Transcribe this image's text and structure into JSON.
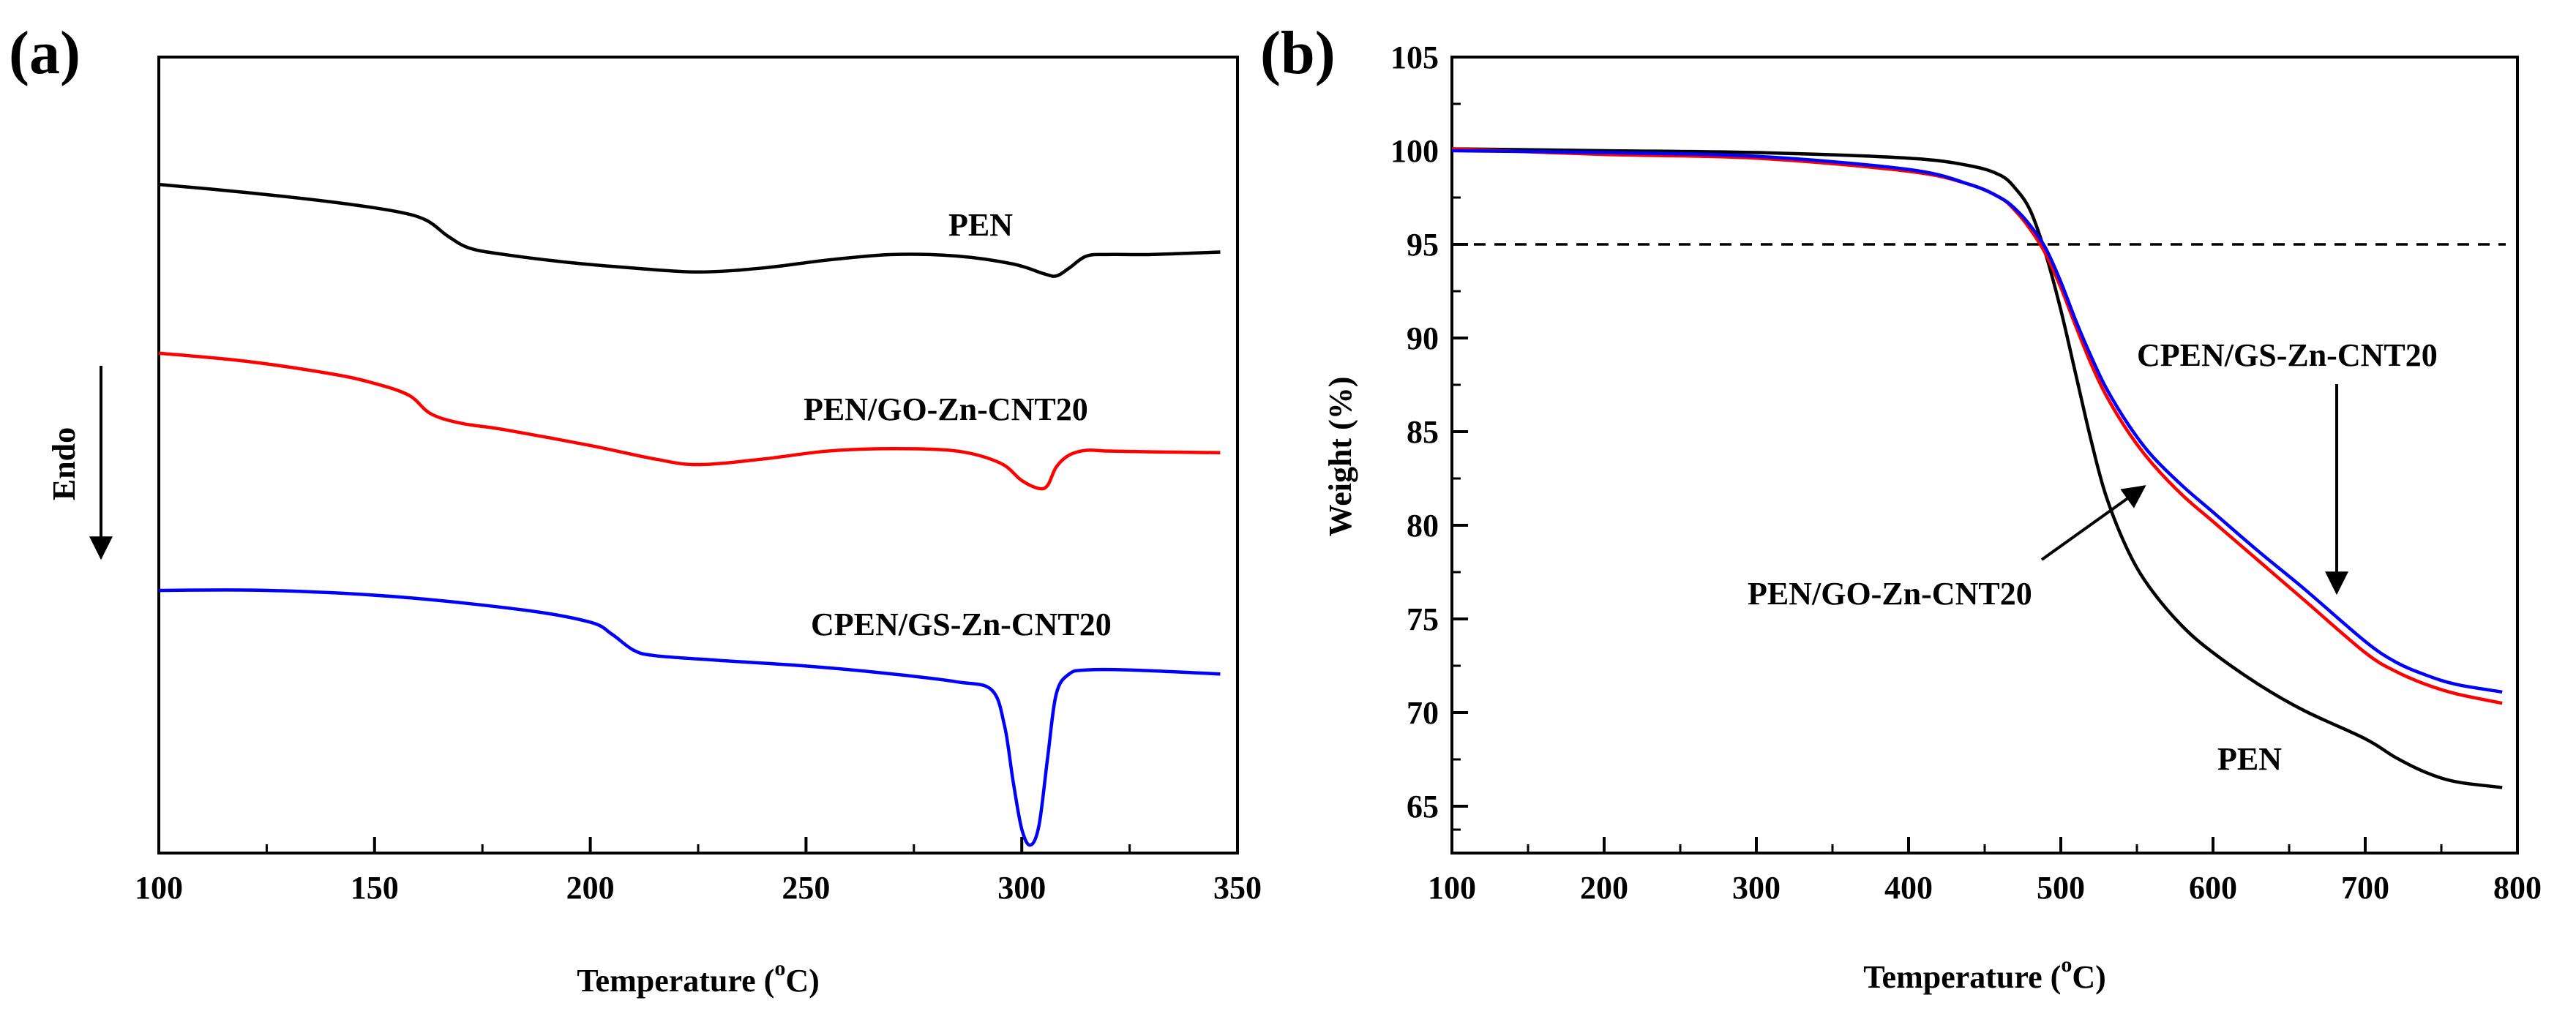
{
  "chart_data": [
    {
      "panel": "(a)",
      "type": "line",
      "title": "",
      "xlabel_pre": "Temperature (",
      "xlabel_sup": "o",
      "xlabel_post": "C)",
      "ylabel": "Endo",
      "xlim": [
        100,
        350
      ],
      "xticks": [
        100,
        150,
        200,
        250,
        300,
        350
      ],
      "ylim": [
        0,
        10
      ],
      "series": [
        {
          "name": "PEN",
          "color": "#000000",
          "x": [
            100,
            120,
            140,
            155,
            162,
            167,
            172,
            180,
            195,
            210,
            225,
            240,
            255,
            270,
            285,
            298,
            305,
            308,
            311,
            315,
            320,
            330,
            346
          ],
          "y": [
            8.4,
            8.3,
            8.18,
            8.06,
            7.95,
            7.75,
            7.6,
            7.52,
            7.42,
            7.35,
            7.3,
            7.35,
            7.45,
            7.52,
            7.5,
            7.4,
            7.28,
            7.25,
            7.35,
            7.5,
            7.52,
            7.52,
            7.55
          ]
        },
        {
          "name": "PEN/GO-Zn-CNT20",
          "color": "#ff0000",
          "x": [
            100,
            120,
            140,
            150,
            158,
            163,
            170,
            180,
            200,
            215,
            225,
            240,
            255,
            270,
            285,
            295,
            300,
            304,
            306,
            308,
            311,
            315,
            320,
            330,
            346
          ],
          "y": [
            6.28,
            6.18,
            6.02,
            5.9,
            5.75,
            5.52,
            5.4,
            5.32,
            5.12,
            4.95,
            4.88,
            4.95,
            5.05,
            5.08,
            5.05,
            4.9,
            4.68,
            4.58,
            4.62,
            4.85,
            5.0,
            5.06,
            5.05,
            5.04,
            5.03
          ]
        },
        {
          "name": "CPEN/GS-Zn-CNT20",
          "color": "#0000ff",
          "x": [
            100,
            125,
            155,
            185,
            200,
            205,
            210,
            215,
            230,
            250,
            270,
            285,
            293,
            296,
            298,
            300,
            302,
            304,
            306,
            308,
            311,
            315,
            325,
            346
          ],
          "y": [
            3.3,
            3.3,
            3.22,
            3.05,
            2.9,
            2.75,
            2.55,
            2.48,
            2.42,
            2.35,
            2.25,
            2.15,
            2.05,
            1.6,
            0.9,
            0.3,
            0.1,
            0.35,
            1.2,
            2.0,
            2.25,
            2.3,
            2.3,
            2.25
          ]
        }
      ],
      "annotations": [
        "PEN",
        "PEN/GO-Zn-CNT20",
        "CPEN/GS-Zn-CNT20"
      ]
    },
    {
      "panel": "(b)",
      "type": "line",
      "title": "",
      "xlabel_pre": "Temperature (",
      "xlabel_sup": "o",
      "xlabel_post": "C)",
      "ylabel": "Weight (%)",
      "xlim": [
        100,
        800
      ],
      "xticks": [
        100,
        200,
        300,
        400,
        500,
        600,
        700,
        800
      ],
      "ylim": [
        62.5,
        105
      ],
      "yticks": [
        65,
        70,
        75,
        80,
        85,
        90,
        95,
        100,
        105
      ],
      "reference_line": {
        "y": 95,
        "style": "dashed"
      },
      "series": [
        {
          "name": "PEN",
          "color": "#000000",
          "x": [
            100,
            200,
            300,
            400,
            440,
            460,
            470,
            480,
            490,
            500,
            510,
            520,
            530,
            545,
            560,
            580,
            600,
            630,
            660,
            700,
            720,
            740,
            760,
            790
          ],
          "y": [
            100.1,
            100.0,
            99.9,
            99.6,
            99.2,
            98.7,
            98.0,
            96.8,
            94.5,
            91.5,
            88.0,
            84.5,
            81.5,
            78.5,
            76.5,
            74.6,
            73.2,
            71.5,
            70.1,
            68.6,
            67.6,
            66.8,
            66.3,
            66.0
          ]
        },
        {
          "name": "PEN/GO-Zn-CNT20",
          "color": "#ff0000",
          "x": [
            100,
            200,
            300,
            400,
            440,
            460,
            470,
            480,
            490,
            500,
            510,
            520,
            530,
            545,
            560,
            580,
            600,
            630,
            660,
            700,
            720,
            740,
            760,
            790
          ],
          "y": [
            100.1,
            99.8,
            99.6,
            98.9,
            98.2,
            97.5,
            96.8,
            95.8,
            94.5,
            92.7,
            90.6,
            88.6,
            86.9,
            84.9,
            83.3,
            81.6,
            80.2,
            78.1,
            76.0,
            73.2,
            72.2,
            71.5,
            71.0,
            70.5
          ]
        },
        {
          "name": "CPEN/GS-Zn-CNT20",
          "color": "#0000ff",
          "x": [
            100,
            200,
            300,
            400,
            440,
            460,
            470,
            480,
            490,
            500,
            510,
            520,
            530,
            545,
            560,
            580,
            600,
            630,
            660,
            700,
            720,
            740,
            760,
            790
          ],
          "y": [
            100.0,
            99.9,
            99.7,
            99.0,
            98.2,
            97.5,
            96.9,
            96.0,
            94.8,
            93.0,
            90.9,
            89.0,
            87.3,
            85.3,
            83.7,
            82.1,
            80.7,
            78.6,
            76.6,
            73.8,
            72.7,
            72.0,
            71.5,
            71.1
          ]
        }
      ],
      "annotations": [
        "CPEN/GS-Zn-CNT20",
        "PEN/GO-Zn-CNT20",
        "PEN"
      ]
    }
  ]
}
